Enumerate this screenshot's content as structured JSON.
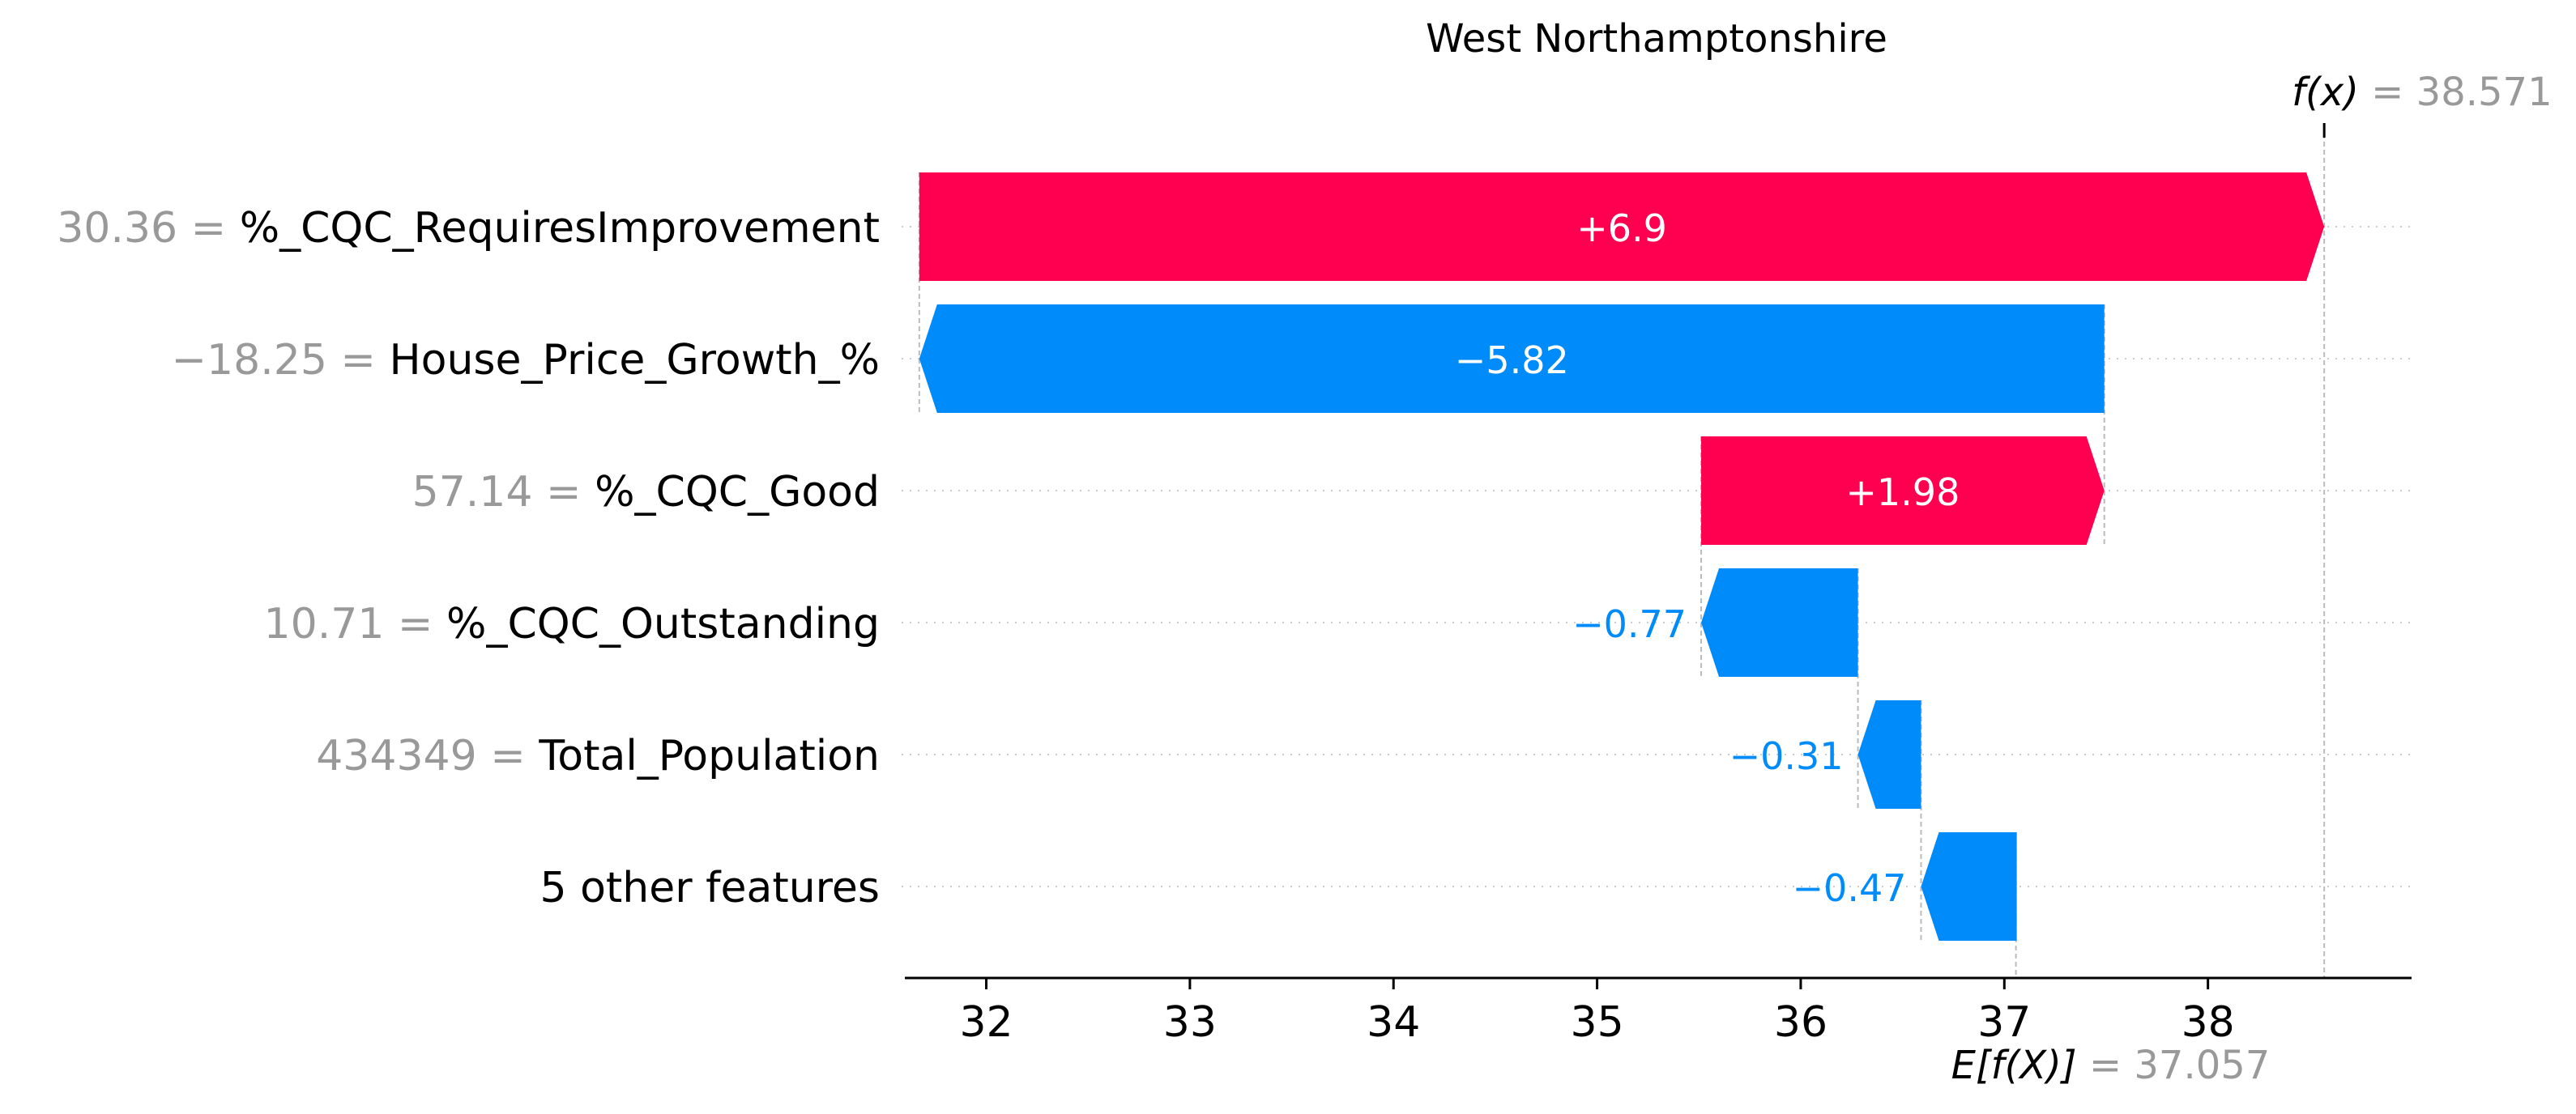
{
  "chart_data": {
    "type": "waterfall",
    "title": "West Northamptonshire",
    "xlabel": "",
    "ylabel": "",
    "xlim": [
      31.6,
      39.0
    ],
    "xticks": [
      32,
      33,
      34,
      35,
      36,
      37,
      38
    ],
    "base_value": 37.057,
    "base_value_label": "37.057",
    "base_symbol": "E[f(X)]",
    "output_value": 38.571,
    "output_value_label": "38.571",
    "output_symbol": "f(x)",
    "equals_sign": "=",
    "grid": false,
    "positive_color": "#ff0051",
    "negative_color": "#008bfb",
    "features": [
      {
        "value": "30.36",
        "name": "%_CQC_RequiresImprovement",
        "contribution": 6.9,
        "label": "+6.9"
      },
      {
        "value": "−18.25",
        "name": "House_Price_Growth_%",
        "contribution": -5.82,
        "label": "−5.82"
      },
      {
        "value": "57.14",
        "name": "%_CQC_Good",
        "contribution": 1.98,
        "label": "+1.98"
      },
      {
        "value": "10.71",
        "name": "%_CQC_Outstanding",
        "contribution": -0.77,
        "label": "−0.77"
      },
      {
        "value": "434349",
        "name": "Total_Population",
        "contribution": -0.31,
        "label": "−0.31"
      },
      {
        "value": "",
        "name": "5 other features",
        "contribution": -0.47,
        "label": "−0.47"
      }
    ]
  }
}
